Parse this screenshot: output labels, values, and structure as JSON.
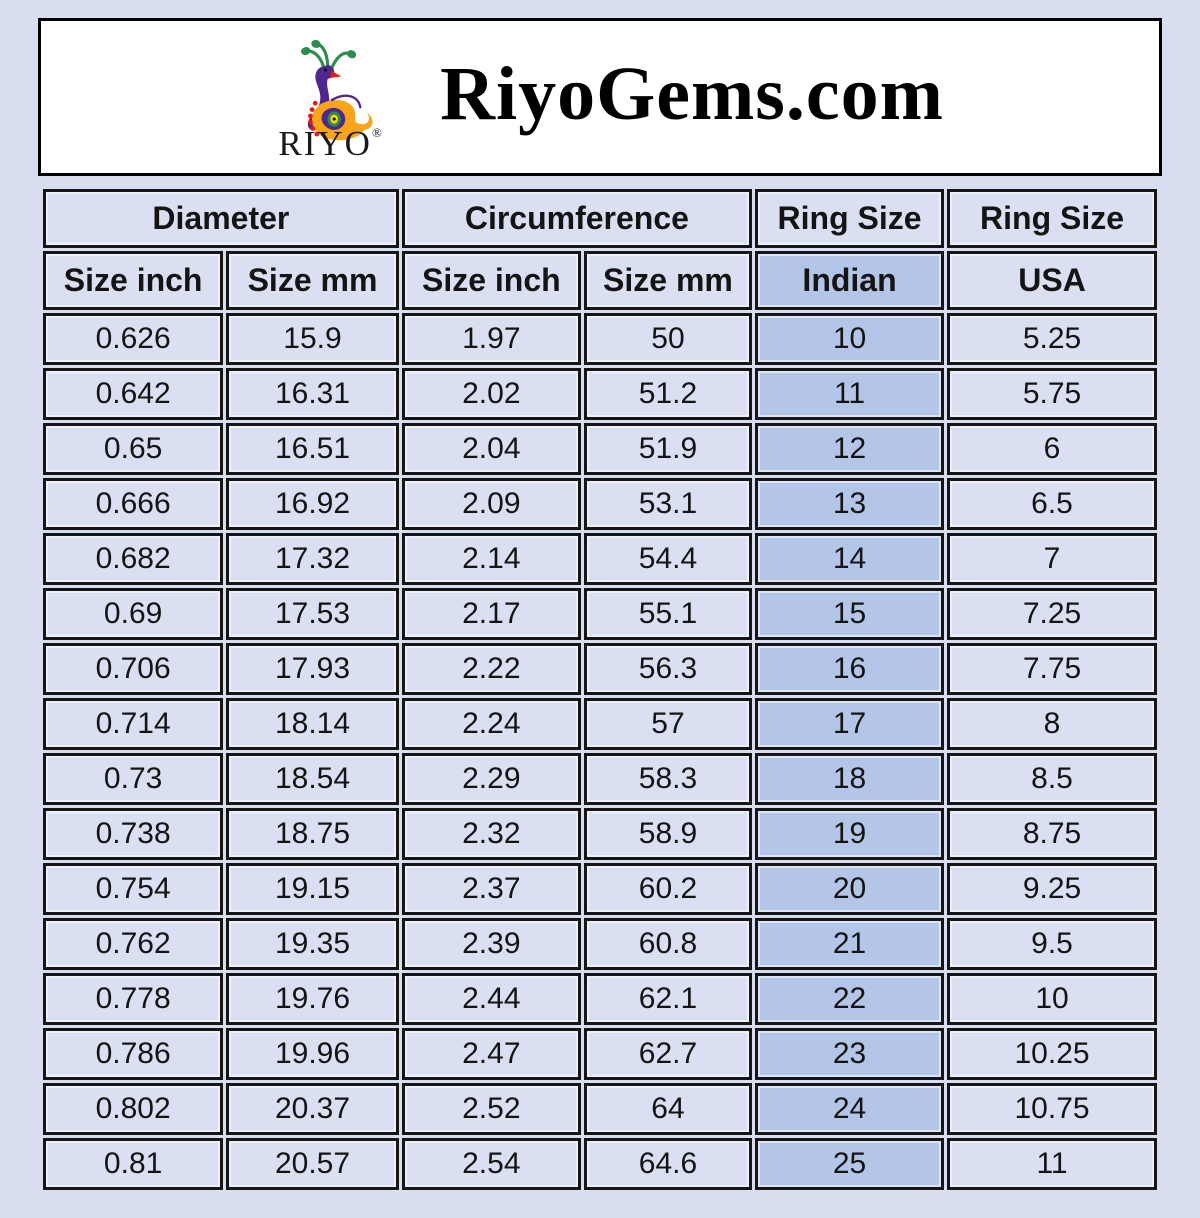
{
  "header": {
    "title": "RiyoGems.com",
    "logo_brand": "RIYO",
    "logo_registered": "®",
    "logo_icon": "peacock-logo-icon"
  },
  "chart_data": {
    "type": "table",
    "title": "Ring size conversion chart",
    "column_groups": [
      {
        "label": "Diameter",
        "span": 2
      },
      {
        "label": "Circumference",
        "span": 2
      },
      {
        "label": "Ring Size",
        "span": 1
      },
      {
        "label": "Ring Size",
        "span": 1
      }
    ],
    "columns": [
      "Size inch",
      "Size mm",
      "Size inch",
      "Size mm",
      "Indian",
      "USA"
    ],
    "highlight_column": "Indian",
    "rows": [
      [
        "0.626",
        "15.9",
        "1.97",
        "50",
        "10",
        "5.25"
      ],
      [
        "0.642",
        "16.31",
        "2.02",
        "51.2",
        "11",
        "5.75"
      ],
      [
        "0.65",
        "16.51",
        "2.04",
        "51.9",
        "12",
        "6"
      ],
      [
        "0.666",
        "16.92",
        "2.09",
        "53.1",
        "13",
        "6.5"
      ],
      [
        "0.682",
        "17.32",
        "2.14",
        "54.4",
        "14",
        "7"
      ],
      [
        "0.69",
        "17.53",
        "2.17",
        "55.1",
        "15",
        "7.25"
      ],
      [
        "0.706",
        "17.93",
        "2.22",
        "56.3",
        "16",
        "7.75"
      ],
      [
        "0.714",
        "18.14",
        "2.24",
        "57",
        "17",
        "8"
      ],
      [
        "0.73",
        "18.54",
        "2.29",
        "58.3",
        "18",
        "8.5"
      ],
      [
        "0.738",
        "18.75",
        "2.32",
        "58.9",
        "19",
        "8.75"
      ],
      [
        "0.754",
        "19.15",
        "2.37",
        "60.2",
        "20",
        "9.25"
      ],
      [
        "0.762",
        "19.35",
        "2.39",
        "60.8",
        "21",
        "9.5"
      ],
      [
        "0.778",
        "19.76",
        "2.44",
        "62.1",
        "22",
        "10"
      ],
      [
        "0.786",
        "19.96",
        "2.47",
        "62.7",
        "23",
        "10.25"
      ],
      [
        "0.802",
        "20.37",
        "2.52",
        "64",
        "24",
        "10.75"
      ],
      [
        "0.81",
        "20.57",
        "2.54",
        "64.6",
        "25",
        "11"
      ]
    ],
    "layout": {
      "grid": "all-borders",
      "legend": "none"
    },
    "colors": {
      "page_background": "#d8ddf0",
      "cell_background": "#dae0f2",
      "indian_column_background": "#b4c6e7",
      "cell_border": "#161616",
      "header_box_background": "#ffffff",
      "header_box_border": "#000000",
      "text": "#141414",
      "logo_purple": "#52268f",
      "logo_orange": "#f9a41a",
      "logo_green": "#2d8c4e",
      "logo_red": "#e8190f",
      "logo_yellow": "#ffd400"
    }
  }
}
